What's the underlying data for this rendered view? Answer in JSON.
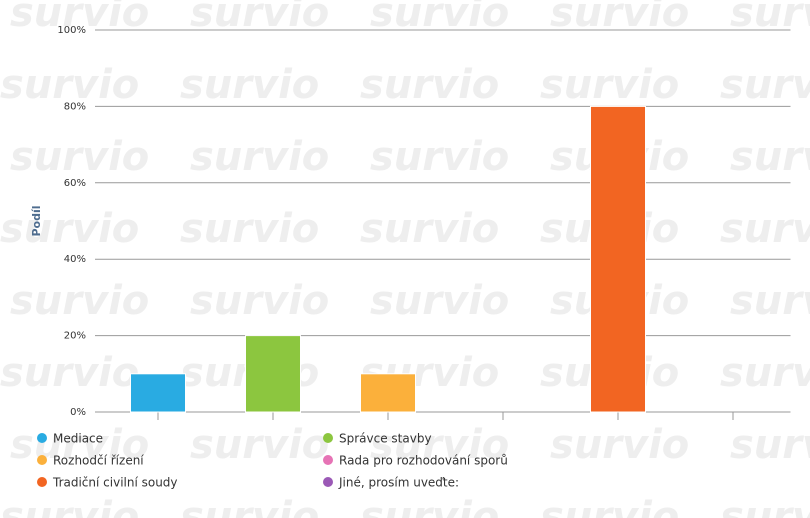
{
  "chart_data": {
    "type": "bar",
    "y_label": "Podíl",
    "watermark": "survio",
    "categories": [
      "Mediace",
      "Správce stavby",
      "Rozhodčí řízení",
      "Rada pro rozhodování sporů",
      "Tradiční civilní soudy",
      "Jiné, prosím uveďte:"
    ],
    "values": [
      10,
      20,
      10,
      0,
      80,
      0
    ],
    "colors": [
      "#29abe2",
      "#8cc63f",
      "#fbb03b",
      "#e673b5",
      "#f26522",
      "#9b59b6"
    ],
    "ylim": [
      0,
      100
    ],
    "yticks": [
      {
        "value": 0,
        "label": "0%"
      },
      {
        "value": 20,
        "label": "20%"
      },
      {
        "value": 40,
        "label": "40%"
      },
      {
        "value": 60,
        "label": "60%"
      },
      {
        "value": 80,
        "label": "80%"
      },
      {
        "value": 100,
        "label": "100%"
      }
    ],
    "grid": true,
    "legend": "bottom"
  }
}
